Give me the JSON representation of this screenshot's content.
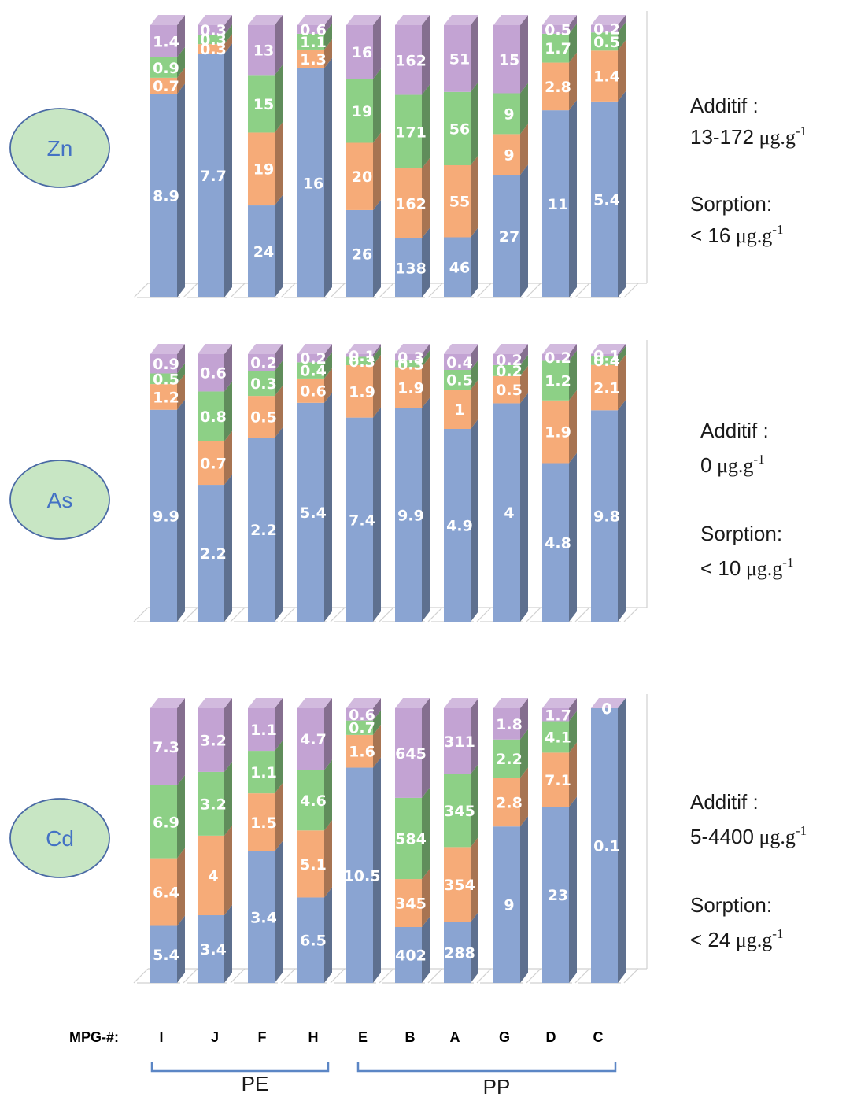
{
  "chart_data": [
    {
      "type": "bar",
      "stacked": true,
      "element": "Zn",
      "categories": [
        "I",
        "J",
        "F",
        "H",
        "E",
        "B",
        "A",
        "G",
        "D",
        "C"
      ],
      "series": [
        {
          "color": "#8aa4d2",
          "values": [
            8.9,
            7.7,
            24,
            16,
            26,
            138,
            46,
            27,
            11,
            5.4
          ]
        },
        {
          "color": "#f6ab78",
          "values": [
            0.7,
            0.3,
            19,
            1.3,
            20,
            162,
            55,
            9,
            2.8,
            1.4
          ]
        },
        {
          "color": "#8dd086",
          "values": [
            0.9,
            0.3,
            15,
            1.1,
            19,
            171,
            56,
            9,
            1.7,
            0.5
          ]
        },
        {
          "color": "#c3a3d3",
          "values": [
            1.4,
            0.3,
            13,
            0.6,
            16,
            162,
            51,
            15,
            0.5,
            0.2
          ]
        }
      ],
      "notes": {
        "additif_label": "Additif :",
        "additif_value": "13-172",
        "sorption_label": "Sorption:",
        "sorption_value": "< 16",
        "unit": "μg.g",
        "unit_exp": "-1"
      }
    },
    {
      "type": "bar",
      "stacked": true,
      "element": "As",
      "categories": [
        "I",
        "J",
        "F",
        "H",
        "E",
        "B",
        "A",
        "G",
        "D",
        "C"
      ],
      "series": [
        {
          "color": "#8aa4d2",
          "values": [
            9.9,
            2.2,
            2.2,
            5.4,
            7.4,
            9.9,
            4.9,
            4.0,
            4.8,
            9.8
          ]
        },
        {
          "color": "#f6ab78",
          "values": [
            1.2,
            0.7,
            0.5,
            0.6,
            1.9,
            1.9,
            1.0,
            0.5,
            1.9,
            2.1
          ]
        },
        {
          "color": "#8dd086",
          "values": [
            0.5,
            0.8,
            0.3,
            0.4,
            0.3,
            0.3,
            0.5,
            0.2,
            1.2,
            0.4
          ]
        },
        {
          "color": "#c3a3d3",
          "values": [
            0.9,
            0.6,
            0.2,
            0.2,
            0.1,
            0.3,
            0.4,
            0.2,
            0.2,
            0.1
          ]
        }
      ],
      "notes": {
        "additif_label": "Additif :",
        "additif_value": "0",
        "sorption_label": "Sorption:",
        "sorption_value": "< 10",
        "unit": "μg.g",
        "unit_exp": "-1"
      }
    },
    {
      "type": "bar",
      "stacked": true,
      "element": "Cd",
      "categories": [
        "I",
        "J",
        "F",
        "H",
        "E",
        "B",
        "A",
        "G",
        "D",
        "C"
      ],
      "series": [
        {
          "color": "#8aa4d2",
          "values": [
            5.4,
            3.4,
            3.4,
            6.5,
            10.5,
            402,
            288,
            9.0,
            23,
            0.1
          ]
        },
        {
          "color": "#f6ab78",
          "values": [
            6.4,
            4.0,
            1.5,
            5.1,
            1.6,
            345,
            354,
            2.8,
            7.1,
            0.0
          ]
        },
        {
          "color": "#8dd086",
          "values": [
            6.9,
            3.2,
            1.1,
            4.6,
            0.7,
            584,
            345,
            2.2,
            4.1,
            0.0
          ]
        },
        {
          "color": "#c3a3d3",
          "values": [
            7.3,
            3.2,
            1.1,
            4.7,
            0.6,
            645,
            311,
            1.8,
            1.7,
            0.0
          ]
        }
      ],
      "notes": {
        "additif_label": "Additif :",
        "additif_value": "5-4400",
        "sorption_label": "Sorption:",
        "sorption_value": "< 24",
        "unit": "μg.g",
        "unit_exp": "-1"
      }
    }
  ],
  "axis": {
    "prefix": "MPG-#:",
    "categories": [
      "I",
      "J",
      "F",
      "H",
      "E",
      "B",
      "A",
      "G",
      "D",
      "C"
    ]
  },
  "groups": [
    {
      "label": "PE",
      "members": [
        "I",
        "J",
        "F",
        "H"
      ]
    },
    {
      "label": "PP",
      "members": [
        "E",
        "B",
        "A",
        "G",
        "D",
        "C"
      ]
    }
  ],
  "colors": {
    "badge_fill": "#c8e6c4",
    "badge_stroke": "#4a6aa5",
    "badge_text": "#4472c4",
    "bracket": "#5b86c5",
    "floor": "#d0d0d0"
  }
}
